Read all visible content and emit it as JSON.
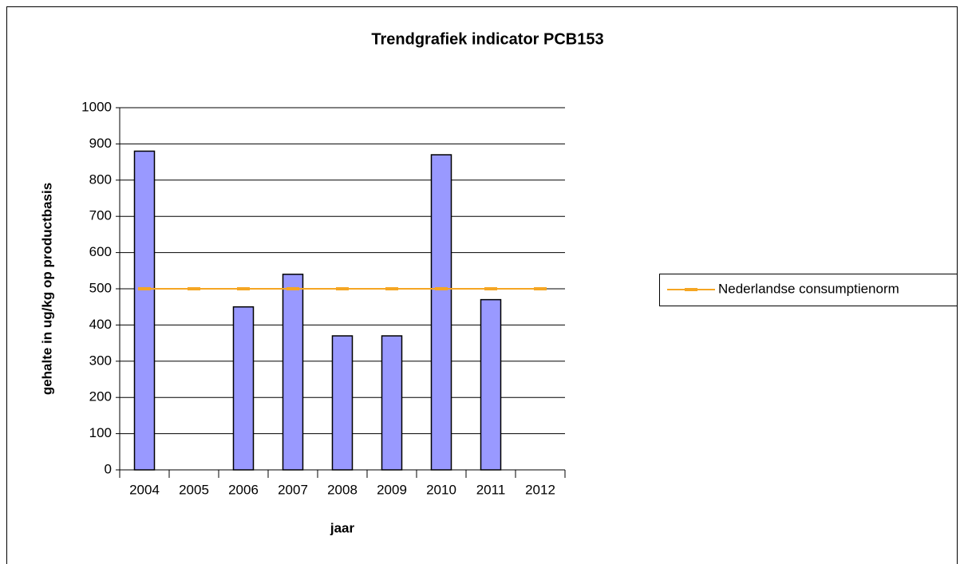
{
  "chart_data": {
    "type": "bar",
    "title": "Trendgrafiek indicator PCB153",
    "x_label": "jaar",
    "y_label": "gehalte in ug/kg op productbasis",
    "categories": [
      "2004",
      "2005",
      "2006",
      "2007",
      "2008",
      "2009",
      "2010",
      "2011",
      "2012"
    ],
    "series": [
      {
        "color": "#9999ff",
        "values": [
          880,
          null,
          450,
          540,
          370,
          370,
          870,
          470,
          null
        ]
      },
      {
        "name": "Nederlandse consumptienorm",
        "type": "line",
        "color": "#f5a623",
        "values": [
          500,
          500,
          500,
          500,
          500,
          500,
          500,
          500,
          500
        ]
      }
    ],
    "ylim": [
      0,
      1000
    ],
    "yticks": [
      0,
      100,
      200,
      300,
      400,
      500,
      600,
      700,
      800,
      900,
      1000
    ],
    "grid": true,
    "legend": "right"
  }
}
